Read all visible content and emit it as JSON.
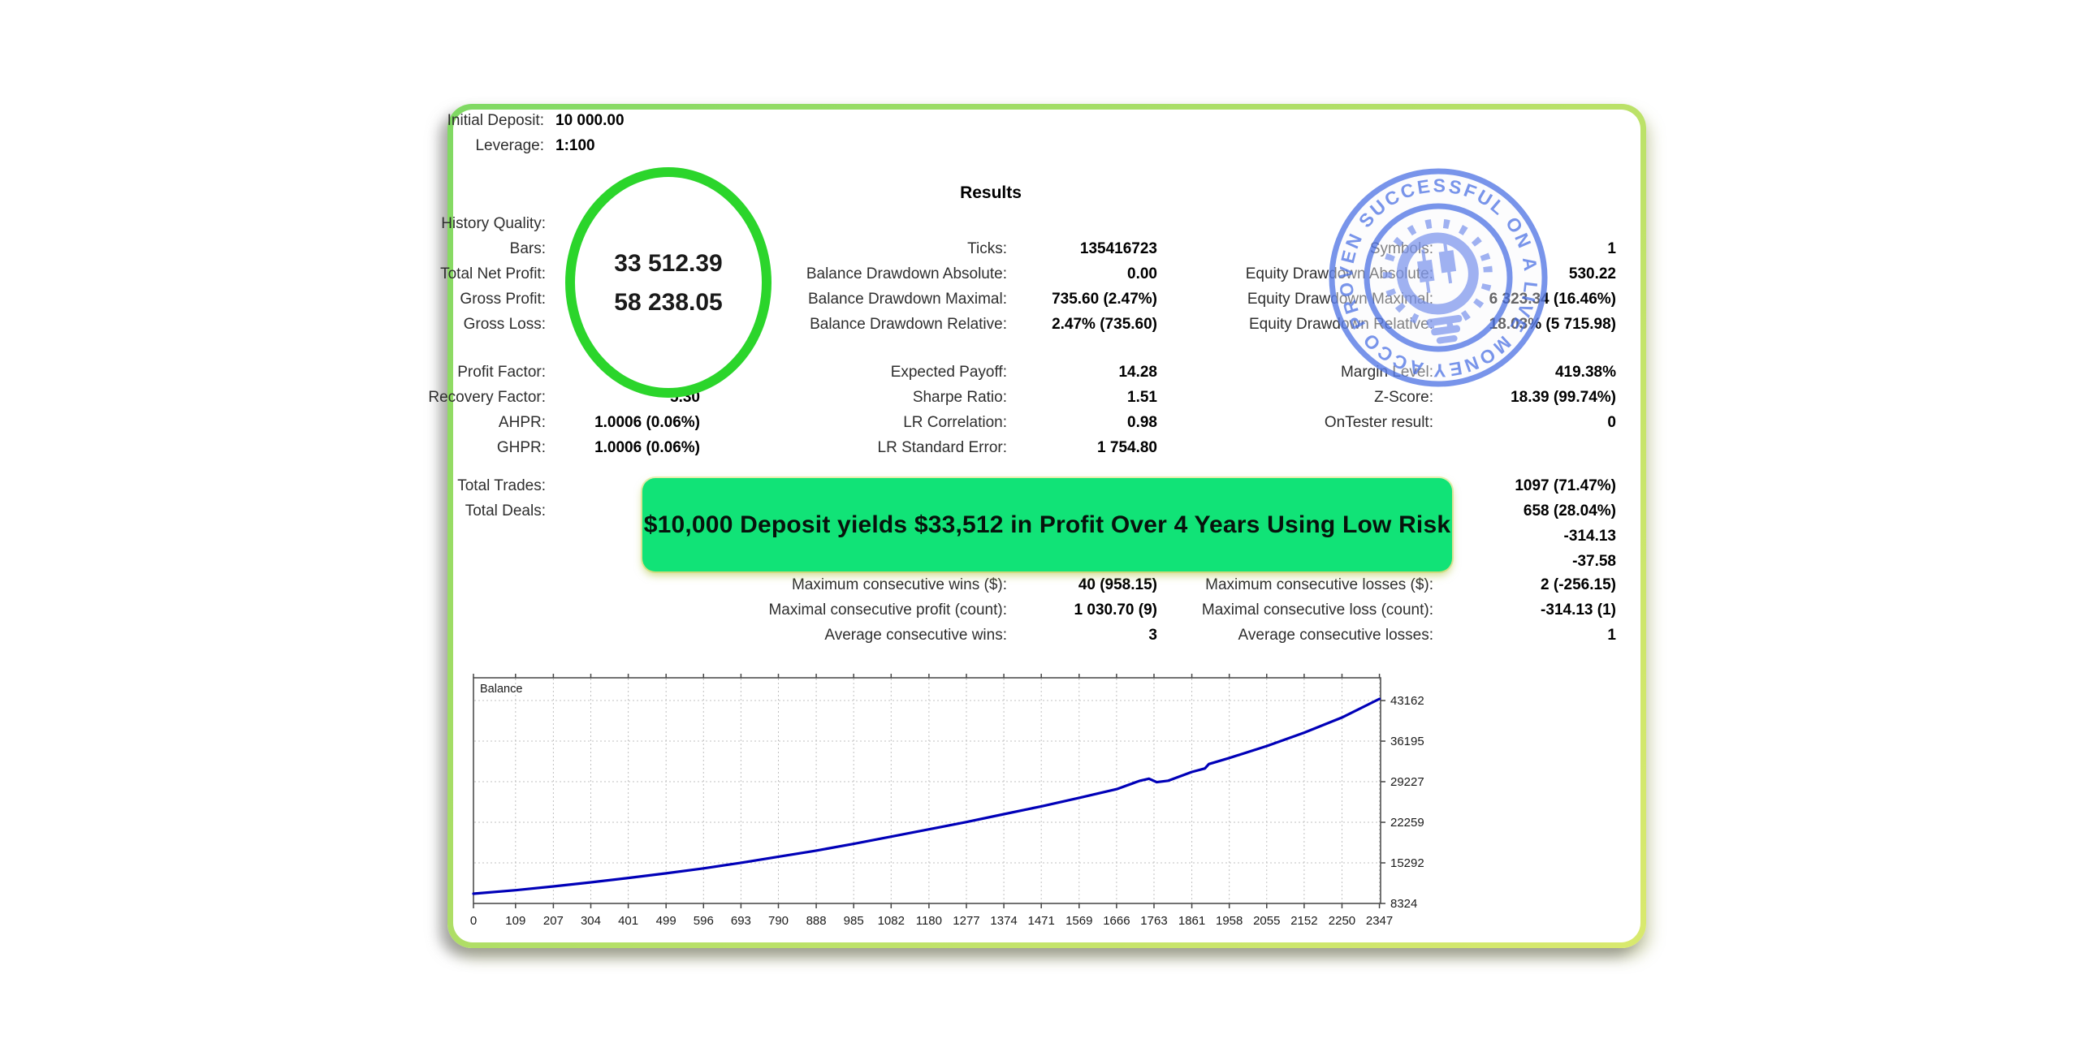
{
  "report": {
    "initial_deposit": {
      "label": "Initial Deposit:",
      "value": "10 000.00"
    },
    "leverage": {
      "label": "Leverage:",
      "value": "1:100"
    },
    "results_title": "Results"
  },
  "highlight_circle": {
    "value_line1": "33 512.39",
    "value_line2": "58 238.05",
    "color": "#2bd52b"
  },
  "banner": {
    "text": "$10,000 Deposit yields $33,512 in Profit Over 4 Years Using Low Risk",
    "color": "#11e377"
  },
  "stamp": {
    "text": "PROVEN SUCCESSFUL ON A LIVE MONEY ACCOUNT",
    "color": "#5b7de6",
    "icon_color": "#8aa0ee",
    "icon": "candlestick-lightbulb"
  },
  "stats_rows": [
    {
      "c1l": "History Quality:"
    },
    {
      "c1l": "Bars:",
      "c2l": "Ticks:",
      "c2v": "135416723",
      "c3l": "Symbols:",
      "c3v": "1"
    },
    {
      "c1l": "Total Net Profit:",
      "c2l": "Balance Drawdown Absolute:",
      "c2v": "0.00",
      "c3l": "Equity Drawdown Absolute:",
      "c3v": "530.22"
    },
    {
      "c1l": "Gross Profit:",
      "c2l": "Balance Drawdown Maximal:",
      "c2v": "735.60 (2.47%)",
      "c3l": "Equity Drawdown Maximal:",
      "c3v": "6 323.34 (16.46%)"
    },
    {
      "c1l": "Gross Loss:",
      "c2l": "Balance Drawdown Relative:",
      "c2v": "2.47% (735.60)",
      "c3l": "Equity Drawdown Relative:",
      "c3v": "18.03% (5 715.98)"
    },
    {
      "c1l": "Profit Factor:",
      "c2l": "Expected Payoff:",
      "c2v": "14.28",
      "c3l": "Margin Level:",
      "c3v": "419.38%"
    },
    {
      "c1l": "Recovery Factor:",
      "c1v": "5.30",
      "c2l": "Sharpe Ratio:",
      "c2v": "1.51",
      "c3l": "Z-Score:",
      "c3v": "18.39 (99.74%)"
    },
    {
      "c1l": "AHPR:",
      "c1v": "1.0006 (0.06%)",
      "c2l": "LR Correlation:",
      "c2v": "0.98",
      "c3l": "OnTester result:",
      "c3v": "0"
    },
    {
      "c1l": "GHPR:",
      "c1v": "1.0006 (0.06%)",
      "c2l": "LR Standard Error:",
      "c2v": "1 754.80"
    },
    {
      "c1l": "Total Trades:",
      "c3v": "1097 (71.47%)"
    },
    {
      "c1l": "Total Deals:",
      "c3v": "658 (28.04%)"
    },
    {
      "c3v": "-314.13"
    },
    {
      "c3v": "-37.58"
    },
    {
      "c2l": "Maximum consecutive wins ($):",
      "c2v": "40 (958.15)",
      "c3l": "Maximum consecutive losses ($):",
      "c3v": "2 (-256.15)"
    },
    {
      "c2l": "Maximal consecutive profit (count):",
      "c2v": "1 030.70 (9)",
      "c3l": "Maximal consecutive loss (count):",
      "c3v": "-314.13 (1)"
    },
    {
      "c2l": "Average consecutive wins:",
      "c2v": "3",
      "c3l": "Average consecutive losses:",
      "c3v": "1"
    }
  ],
  "chart_data": {
    "type": "line",
    "legend": "Balance",
    "x_ticks": [
      0,
      109,
      207,
      304,
      401,
      499,
      596,
      693,
      790,
      888,
      985,
      1082,
      1180,
      1277,
      1374,
      1471,
      1569,
      1666,
      1763,
      1861,
      1958,
      2055,
      2152,
      2250,
      2347
    ],
    "y_ticks": [
      8324,
      15292,
      22259,
      29227,
      36195,
      43162
    ],
    "xlim": [
      0,
      2350
    ],
    "ylim": [
      8324,
      47070
    ],
    "grid": true,
    "line_color": "#0000b8",
    "series": [
      {
        "name": "Balance",
        "points": [
          [
            0,
            10000
          ],
          [
            109,
            10600
          ],
          [
            207,
            11250
          ],
          [
            304,
            11950
          ],
          [
            401,
            12700
          ],
          [
            499,
            13500
          ],
          [
            596,
            14350
          ],
          [
            693,
            15300
          ],
          [
            790,
            16350
          ],
          [
            888,
            17400
          ],
          [
            985,
            18550
          ],
          [
            1082,
            19800
          ],
          [
            1180,
            21050
          ],
          [
            1277,
            22300
          ],
          [
            1374,
            23650
          ],
          [
            1471,
            25000
          ],
          [
            1569,
            26450
          ],
          [
            1666,
            27950
          ],
          [
            1725,
            29350
          ],
          [
            1750,
            29750
          ],
          [
            1770,
            29150
          ],
          [
            1800,
            29400
          ],
          [
            1861,
            30900
          ],
          [
            1895,
            31500
          ],
          [
            1905,
            32250
          ],
          [
            1958,
            33300
          ],
          [
            2055,
            35350
          ],
          [
            2152,
            37650
          ],
          [
            2250,
            40250
          ],
          [
            2347,
            43450
          ]
        ]
      }
    ]
  }
}
